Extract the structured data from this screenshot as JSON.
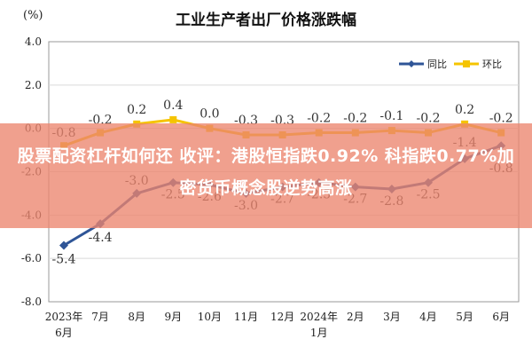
{
  "chart_data": {
    "type": "line",
    "title": "工业生产者出厂价格涨跌幅",
    "y_unit": "(%)",
    "categories": [
      "2023年6月",
      "7月",
      "8月",
      "9月",
      "10月",
      "11月",
      "12月",
      "2024年1月",
      "2月",
      "3月",
      "4月",
      "5月",
      "6月"
    ],
    "x_tick_labels": [
      [
        "2023年",
        "6月"
      ],
      [
        "7月"
      ],
      [
        "8月"
      ],
      [
        "9月"
      ],
      [
        "10月"
      ],
      [
        "11月"
      ],
      [
        "12月"
      ],
      [
        "2024年",
        "1月"
      ],
      [
        "2月"
      ],
      [
        "3月"
      ],
      [
        "4月"
      ],
      [
        "5月"
      ],
      [
        "6月"
      ]
    ],
    "ylim": [
      -8.0,
      4.0
    ],
    "y_ticks": [
      "4.0",
      "2.0",
      "0.0",
      "-2.0",
      "-4.0",
      "-6.0",
      "-8.0"
    ],
    "grid": true,
    "legend_position": "top-right",
    "series": [
      {
        "name": "同比",
        "color": "#2f5597",
        "values": [
          -5.4,
          -4.4,
          -3.0,
          -2.5,
          -2.6,
          -3.0,
          -2.7,
          -2.5,
          -2.7,
          -2.8,
          -2.5,
          -1.4,
          -0.8
        ],
        "labels": [
          "-5.4",
          "-4.4",
          "-3.0",
          "-2.5",
          "-2.6",
          "-3.0",
          "-2.7",
          "-2.5",
          "-2.7",
          "-2.8",
          "-2.5",
          "-1.4",
          "-0.8"
        ]
      },
      {
        "name": "环比",
        "color": "#f5c400",
        "values": [
          -0.8,
          -0.2,
          0.2,
          0.4,
          0.0,
          -0.3,
          -0.3,
          -0.2,
          -0.2,
          -0.1,
          -0.2,
          0.2,
          -0.2
        ],
        "labels": [
          "-0.8",
          "-0.2",
          "0.2",
          "0.4",
          "0.0",
          "-0.3",
          "-0.3",
          "-0.2",
          "-0.2",
          "-0.1",
          "-0.2",
          "0.2",
          "-0.2"
        ]
      }
    ]
  },
  "overlay": {
    "headline": "股票配资杠杆如何还 收评：港股恒指跌0.92% 科指跌0.77%加密货币概念股逆势高涨"
  }
}
